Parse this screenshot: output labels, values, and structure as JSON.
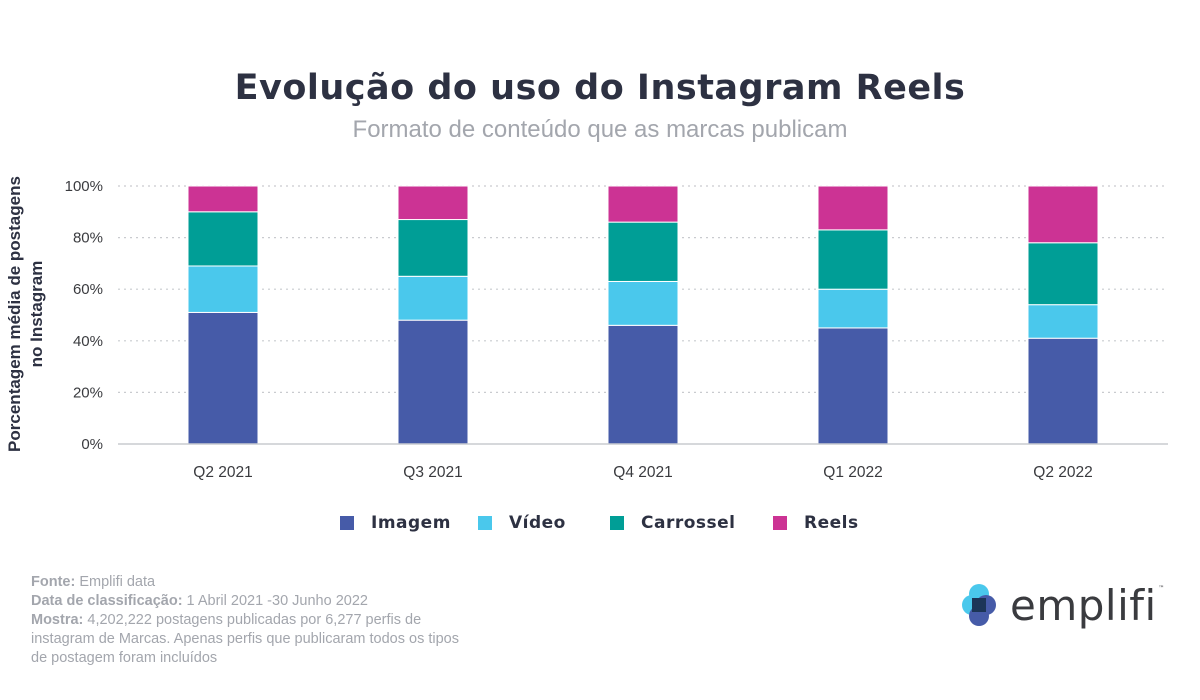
{
  "header": {
    "title": "Evolução do uso do Instagram Reels",
    "subtitle": "Formato de conteúdo que as marcas publicam"
  },
  "chart_data": {
    "type": "bar",
    "stacked": true,
    "title": "Evolução do uso do Instagram Reels",
    "subtitle": "Formato de conteúdo que as marcas publicam",
    "ylabel": [
      "Porcentagem média de postagens",
      "no Instagram"
    ],
    "xlabel": "",
    "ylim": [
      0,
      100
    ],
    "yticks": [
      "0%",
      "20%",
      "40%",
      "60%",
      "80%",
      "100%"
    ],
    "ytick_values": [
      0,
      20,
      40,
      60,
      80,
      100
    ],
    "categories": [
      "Q2 2021",
      "Q3 2021",
      "Q4 2021",
      "Q1 2022",
      "Q2 2022"
    ],
    "series": [
      {
        "name": "Imagem",
        "color": "#465ba8",
        "values": [
          51,
          48,
          46,
          45,
          41
        ]
      },
      {
        "name": "Vídeo",
        "color": "#4ac8ec",
        "values": [
          18,
          17,
          17,
          15,
          13
        ]
      },
      {
        "name": "Carrossel",
        "color": "#009e96",
        "values": [
          21,
          22,
          23,
          23,
          24
        ]
      },
      {
        "name": "Reels",
        "color": "#cc3394",
        "values": [
          10,
          13,
          14,
          17,
          22
        ]
      }
    ],
    "grid": "horizontal dotted",
    "legend_position": "bottom"
  },
  "footer": {
    "source_label": "Fonte:",
    "source_value": " Emplifi data",
    "date_label": "Data de classificação:",
    "date_value": " 1 Abril 2021 -30 Junho 2022",
    "sample_label": "Mostra:",
    "sample_value_1": " 4,202,222 postagens publicadas por 6,277 perfis de",
    "sample_value_2": "instagram de Marcas.  Apenas perfis que publicaram todos os tipos",
    "sample_value_3": "de postagem foram incluídos"
  },
  "logo": {
    "text": "emplifi",
    "tm": "™",
    "colors": {
      "blue": "#4ac8ec",
      "navy": "#1c3557",
      "purple": "#465ba8"
    }
  }
}
